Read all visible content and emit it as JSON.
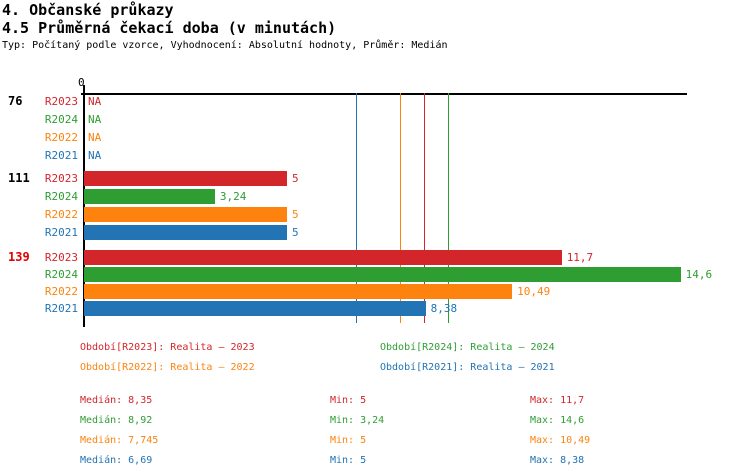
{
  "header": {
    "title": "4. Občanské průkazy",
    "subtitle": "4.5 Průměrná čekací doba (v minutách)",
    "meta": "Typ: Počítaný podle vzorce, Vyhodnocení: Absolutní hodnoty, Průměr: Medián"
  },
  "colors": {
    "series": {
      "R2023": "#d2262b",
      "R2024": "#2e9e33",
      "R2022": "#fd830e",
      "R2021": "#2274b4"
    },
    "axis": "#000000",
    "group_label_normal": "#000000",
    "group_label_alert": "#e00000"
  },
  "chart_data": {
    "type": "bar",
    "orientation": "horizontal",
    "title": "4.5 Průměrná čekací doba (v minutách)",
    "axis": {
      "zero_label": "0",
      "x_min": 0
    },
    "series_order": [
      "R2023",
      "R2024",
      "R2022",
      "R2021"
    ],
    "groups": [
      {
        "label": "76",
        "label_color": "#000000",
        "bars": [
          {
            "series": "R2023",
            "value": null,
            "display": "NA"
          },
          {
            "series": "R2024",
            "value": null,
            "display": "NA"
          },
          {
            "series": "R2022",
            "value": null,
            "display": "NA"
          },
          {
            "series": "R2021",
            "value": null,
            "display": "NA"
          }
        ]
      },
      {
        "label": "111",
        "label_color": "#000000",
        "bars": [
          {
            "series": "R2023",
            "value": 5,
            "display": "5"
          },
          {
            "series": "R2024",
            "value": 3.24,
            "display": "3,24"
          },
          {
            "series": "R2022",
            "value": 5,
            "display": "5"
          },
          {
            "series": "R2021",
            "value": 5,
            "display": "5"
          }
        ]
      },
      {
        "label": "139",
        "label_color": "#e00000",
        "bars": [
          {
            "series": "R2023",
            "value": 11.7,
            "display": "11,7"
          },
          {
            "series": "R2024",
            "value": 14.6,
            "display": "14,6"
          },
          {
            "series": "R2022",
            "value": 10.49,
            "display": "10,49"
          },
          {
            "series": "R2021",
            "value": 8.38,
            "display": "8,38"
          }
        ]
      }
    ],
    "median_lines": [
      {
        "series": "R2023",
        "value": 8.35
      },
      {
        "series": "R2024",
        "value": 8.92
      },
      {
        "series": "R2022",
        "value": 7.745
      },
      {
        "series": "R2021",
        "value": 6.69
      }
    ]
  },
  "legend": {
    "items": [
      {
        "series": "R2023",
        "text": "Období[R2023]: Realita – 2023"
      },
      {
        "series": "R2024",
        "text": "Období[R2024]: Realita – 2024"
      },
      {
        "series": "R2022",
        "text": "Období[R2022]: Realita – 2022"
      },
      {
        "series": "R2021",
        "text": "Období[R2021]: Realita – 2021"
      }
    ]
  },
  "stats": {
    "rows": [
      {
        "series": "R2023",
        "median": "Medián: 8,35",
        "min": "Min: 5",
        "max": "Max: 11,7"
      },
      {
        "series": "R2024",
        "median": "Medián: 8,92",
        "min": "Min: 3,24",
        "max": "Max: 14,6"
      },
      {
        "series": "R2022",
        "median": "Medián: 7,745",
        "min": "Min: 5",
        "max": "Max: 10,49"
      },
      {
        "series": "R2021",
        "median": "Medián: 6,69",
        "min": "Min: 5",
        "max": "Max: 8,38"
      }
    ]
  }
}
